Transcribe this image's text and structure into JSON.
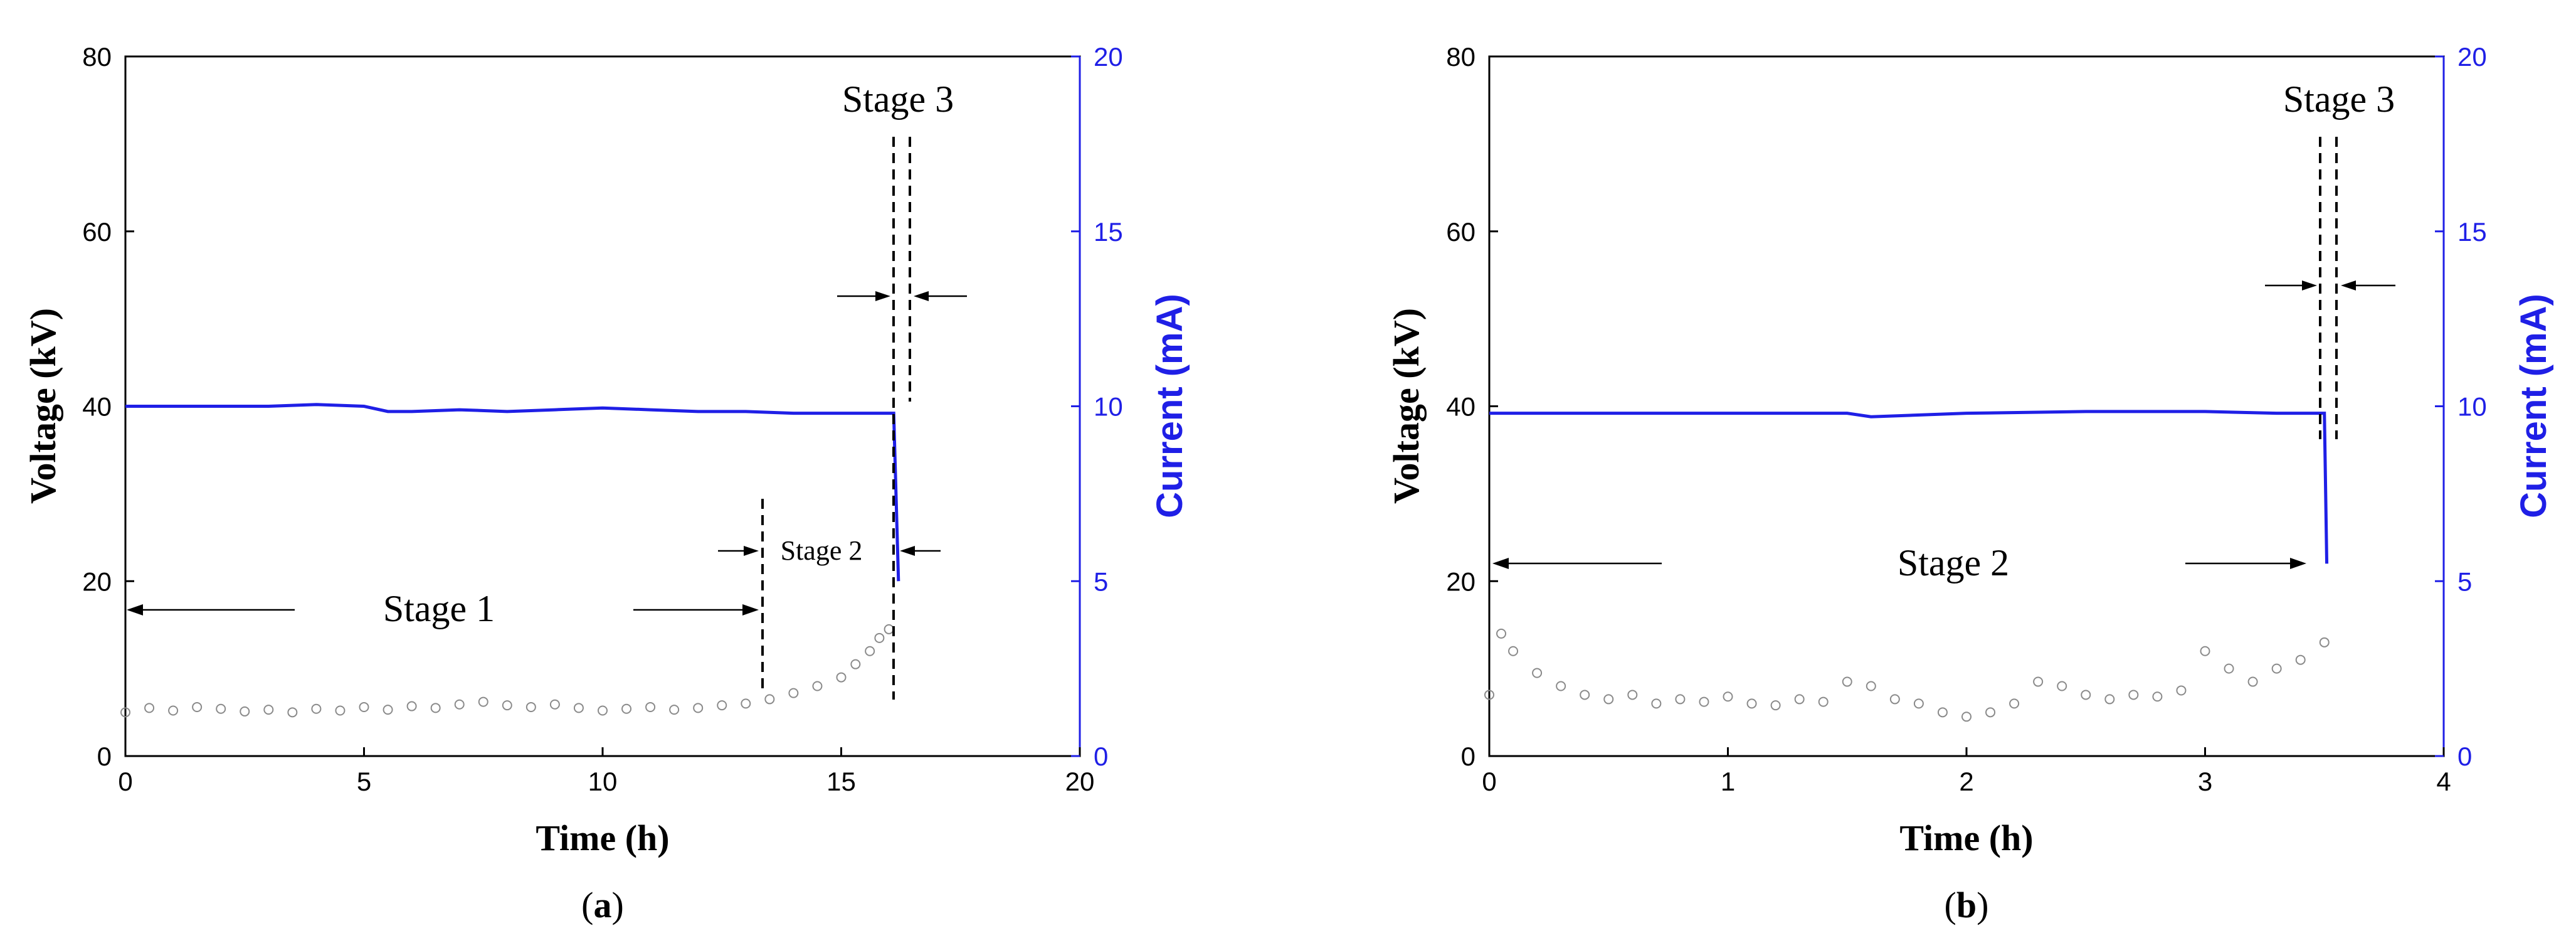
{
  "colors": {
    "current": "#1f1fe6",
    "voltage_points": "#8a8a8a",
    "axes": "#000000"
  },
  "chart_data": [
    {
      "type": "scatter",
      "panel_label": "a",
      "xlabel": "Time (h)",
      "ylabel": "Voltage (kV)",
      "y2label": "Current (mA)",
      "xlim": [
        0,
        20
      ],
      "ylim": [
        0,
        80
      ],
      "y2lim": [
        0,
        20
      ],
      "xticks": [
        0,
        5,
        10,
        15,
        20
      ],
      "yticks": [
        0,
        20,
        40,
        60,
        80
      ],
      "y2ticks": [
        0,
        5,
        10,
        15,
        20
      ],
      "ytick_labels": [
        "0",
        "20",
        "40",
        "60",
        "80"
      ],
      "xtick_labels": [
        "0",
        "5",
        "10",
        "15",
        "20"
      ],
      "y2tick_labels": [
        "0",
        "5",
        "10",
        "15",
        "20"
      ],
      "series": [
        {
          "kind": "scatter",
          "axis": "left",
          "x": [
            0.0,
            0.5,
            1.0,
            1.5,
            2.0,
            2.5,
            3.0,
            3.5,
            4.0,
            4.5,
            5.0,
            5.5,
            6.0,
            6.5,
            7.0,
            7.5,
            8.0,
            8.5,
            9.0,
            9.5,
            10.0,
            10.5,
            11.0,
            11.5,
            12.0,
            12.5,
            13.0,
            13.5,
            14.0,
            14.5,
            15.0,
            15.3,
            15.6,
            15.8,
            16.0
          ],
          "y": [
            5.0,
            5.5,
            5.2,
            5.6,
            5.4,
            5.1,
            5.3,
            5.0,
            5.4,
            5.2,
            5.6,
            5.3,
            5.7,
            5.5,
            5.9,
            6.2,
            5.8,
            5.6,
            5.9,
            5.5,
            5.2,
            5.4,
            5.6,
            5.3,
            5.5,
            5.8,
            6.0,
            6.5,
            7.2,
            8.0,
            9.0,
            10.5,
            12.0,
            13.5,
            14.5
          ]
        },
        {
          "kind": "line",
          "axis": "right",
          "x": [
            0,
            1,
            2,
            3,
            4,
            5,
            5.5,
            6,
            7,
            8,
            9,
            10,
            11,
            12,
            13,
            14,
            15,
            16.1,
            16.2
          ],
          "y": [
            10.0,
            10.0,
            10.0,
            10.0,
            10.05,
            10.0,
            9.85,
            9.85,
            9.9,
            9.85,
            9.9,
            9.95,
            9.9,
            9.85,
            9.85,
            9.8,
            9.8,
            9.8,
            5.0
          ]
        }
      ],
      "annotations": {
        "stage1": "Stage 1",
        "stage2": "Stage 2",
        "stage3": "Stage 3"
      }
    },
    {
      "type": "scatter",
      "panel_label": "b",
      "xlabel": "Time (h)",
      "ylabel": "Voltage (kV)",
      "y2label": "Current (mA)",
      "xlim": [
        0,
        4
      ],
      "ylim": [
        0,
        80
      ],
      "y2lim": [
        0,
        20
      ],
      "xticks": [
        0,
        1,
        2,
        3,
        4
      ],
      "yticks": [
        0,
        20,
        40,
        60,
        80
      ],
      "y2ticks": [
        0,
        5,
        10,
        15,
        20
      ],
      "ytick_labels": [
        "0",
        "20",
        "40",
        "60",
        "80"
      ],
      "xtick_labels": [
        "0",
        "1",
        "2",
        "3",
        "4"
      ],
      "y2tick_labels": [
        "0",
        "5",
        "10",
        "15",
        "20"
      ],
      "series": [
        {
          "kind": "scatter",
          "axis": "left",
          "x": [
            0.0,
            0.05,
            0.1,
            0.2,
            0.3,
            0.4,
            0.5,
            0.6,
            0.7,
            0.8,
            0.9,
            1.0,
            1.1,
            1.2,
            1.3,
            1.4,
            1.5,
            1.6,
            1.7,
            1.8,
            1.9,
            2.0,
            2.1,
            2.2,
            2.3,
            2.4,
            2.5,
            2.6,
            2.7,
            2.8,
            2.9,
            3.0,
            3.1,
            3.2,
            3.3,
            3.4,
            3.5
          ],
          "y": [
            7.0,
            14.0,
            12.0,
            9.5,
            8.0,
            7.0,
            6.5,
            7.0,
            6.0,
            6.5,
            6.2,
            6.8,
            6.0,
            5.8,
            6.5,
            6.2,
            8.5,
            8.0,
            6.5,
            6.0,
            5.0,
            4.5,
            5.0,
            6.0,
            8.5,
            8.0,
            7.0,
            6.5,
            7.0,
            6.8,
            7.5,
            12.0,
            10.0,
            8.5,
            10.0,
            11.0,
            13.0
          ]
        },
        {
          "kind": "line",
          "axis": "right",
          "x": [
            0,
            0.5,
            1.0,
            1.5,
            1.6,
            2.0,
            2.5,
            3.0,
            3.3,
            3.5,
            3.51
          ],
          "y": [
            9.8,
            9.8,
            9.8,
            9.8,
            9.7,
            9.8,
            9.85,
            9.85,
            9.8,
            9.8,
            5.5
          ]
        }
      ],
      "annotations": {
        "stage2": "Stage 2",
        "stage3": "Stage 3"
      }
    }
  ]
}
